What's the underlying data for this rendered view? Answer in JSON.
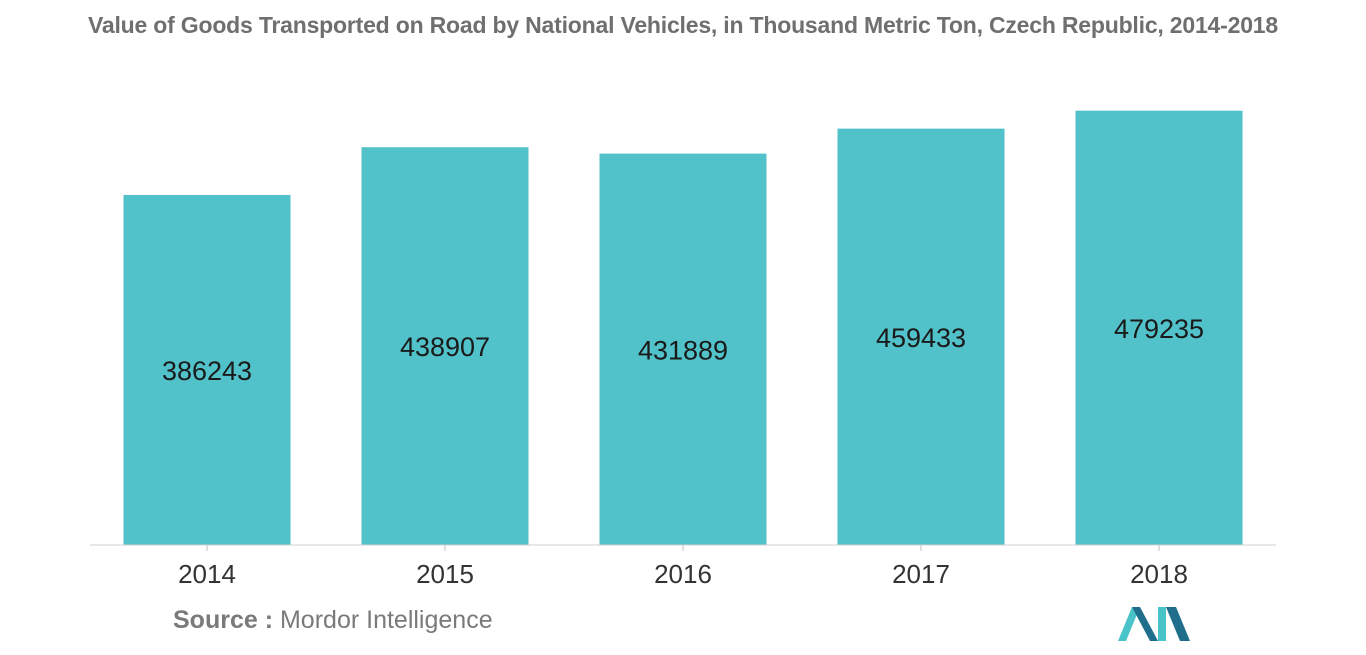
{
  "chart_data": {
    "type": "bar",
    "title": "Value of Goods Transported on Road by National Vehicles, in Thousand Metric Ton, Czech Republic, 2014-2018",
    "categories": [
      "2014",
      "2015",
      "2016",
      "2017",
      "2018"
    ],
    "values": [
      386243,
      438907,
      431889,
      459433,
      479235
    ],
    "value_labels": [
      "386243",
      "438907",
      "431889",
      "459433",
      "479235"
    ],
    "xlabel": "",
    "ylabel": "",
    "ylim": [
      0,
      480000
    ],
    "grid": false,
    "legend": "none",
    "bar_color": "#52c2ca"
  },
  "source": {
    "label": "Source :",
    "text": "Mordor Intelligence"
  },
  "colors": {
    "title": "#6f6f6f",
    "label": "#1a1a1a",
    "axis_tick_text": "#333333",
    "logo_dark": "#1f6e8c",
    "logo_light": "#48c3c8"
  }
}
